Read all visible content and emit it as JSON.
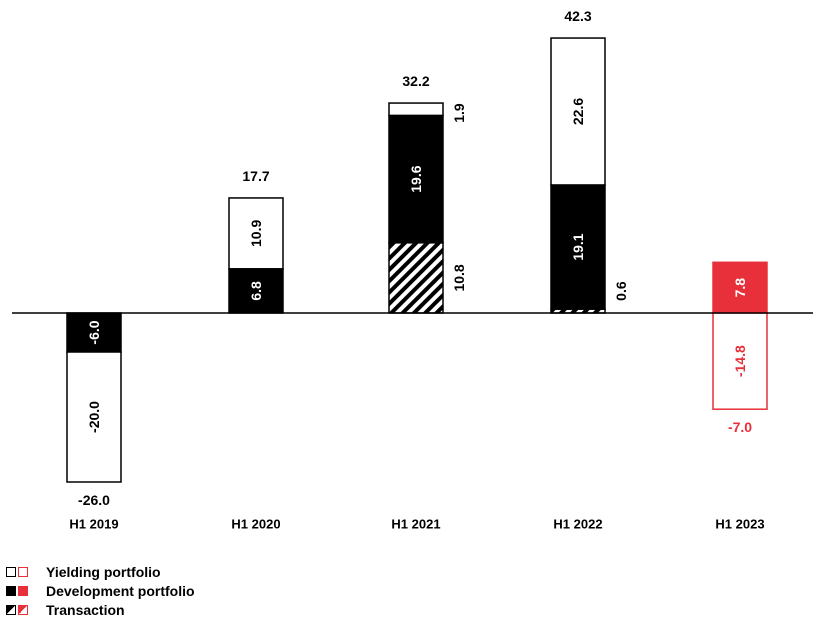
{
  "colors": {
    "black": "#000000",
    "red": "#e8303a",
    "white": "#ffffff"
  },
  "chart_data": {
    "type": "bar",
    "stacked": true,
    "categories": [
      "H1 2019",
      "H1 2020",
      "H1 2021",
      "H1 2022",
      "H1 2023"
    ],
    "series": [
      {
        "name": "Yielding portfolio",
        "values": [
          -20.0,
          10.9,
          1.9,
          22.6,
          -14.8
        ]
      },
      {
        "name": "Development portfolio",
        "values": [
          -6.0,
          6.8,
          19.6,
          19.1,
          7.8
        ]
      },
      {
        "name": "Transaction",
        "values": [
          null,
          null,
          10.8,
          0.6,
          null
        ]
      }
    ],
    "totals": [
      "-26.0",
      "17.7",
      "32.2",
      "42.3",
      "-7.0"
    ],
    "segment_labels": [
      [
        {
          "series": 1,
          "text": "-6.0"
        },
        {
          "series": 0,
          "text": "-20.0"
        }
      ],
      [
        {
          "series": 1,
          "text": "6.8"
        },
        {
          "series": 0,
          "text": "10.9"
        }
      ],
      [
        {
          "series": 2,
          "text": "10.8"
        },
        {
          "series": 1,
          "text": "19.6"
        },
        {
          "series": 0,
          "text": "1.9"
        }
      ],
      [
        {
          "series": 2,
          "text": "0.6"
        },
        {
          "series": 1,
          "text": "19.1"
        },
        {
          "series": 0,
          "text": "22.6"
        }
      ],
      [
        {
          "series": 1,
          "text": "7.8"
        },
        {
          "series": 0,
          "text": "-14.8"
        }
      ]
    ],
    "highlight_category": "H1 2023",
    "ylim": [
      -28,
      45
    ],
    "legend_position": "bottom-left"
  },
  "legend": [
    {
      "label": "Yielding portfolio",
      "kind": "outline"
    },
    {
      "label": "Development portfolio",
      "kind": "solid"
    },
    {
      "label": "Transaction",
      "kind": "diagonal"
    }
  ]
}
